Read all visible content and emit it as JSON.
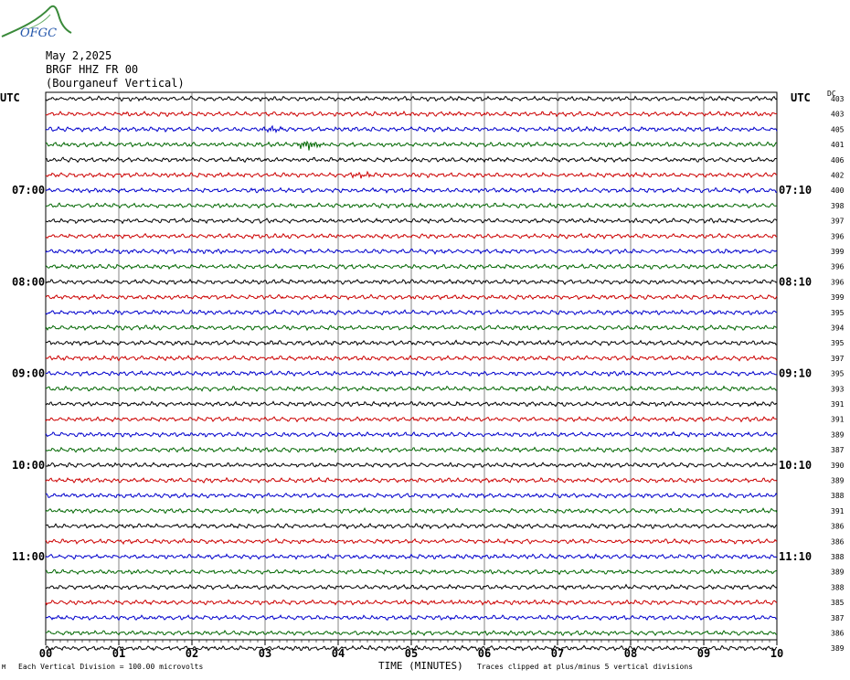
{
  "header": {
    "date": "May 2,2025",
    "station": "BRGF HHZ FR 00",
    "location": "(Bourganeuf Vertical)",
    "logo_text": "OFGC"
  },
  "axis_labels": {
    "left_tz": "UTC",
    "right_tz": "UTC",
    "right_col": "DC"
  },
  "footer": {
    "scale_note": "Each Vertical Division =  100.00 microvolts",
    "xlabel": "TIME (MINUTES)",
    "clip_note": "Traces clipped at plus/minus 5 vertical divisions",
    "mark": "M"
  },
  "chart_data": {
    "type": "line",
    "title": "",
    "xlabel": "TIME (MINUTES)",
    "ylabel": "",
    "xlim": [
      0,
      10
    ],
    "x_ticks": [
      "00",
      "01",
      "02",
      "03",
      "04",
      "05",
      "06",
      "07",
      "08",
      "09",
      "10"
    ],
    "grid": true,
    "trace_colors": [
      "#000000",
      "#cc0000",
      "#0000cc",
      "#006600"
    ],
    "left_time_labels": [
      {
        "row": 6,
        "label": "07:00"
      },
      {
        "row": 12,
        "label": "08:00"
      },
      {
        "row": 18,
        "label": "09:00"
      },
      {
        "row": 24,
        "label": "10:00"
      },
      {
        "row": 30,
        "label": "11:00"
      }
    ],
    "right_time_labels": [
      {
        "row": 6,
        "label": "07:10"
      },
      {
        "row": 12,
        "label": "08:10"
      },
      {
        "row": 18,
        "label": "09:10"
      },
      {
        "row": 24,
        "label": "10:10"
      },
      {
        "row": 30,
        "label": "11:10"
      }
    ],
    "dc_values": [
      "403",
      "403",
      "405",
      "401",
      "406",
      "402",
      "400",
      "398",
      "397",
      "396",
      "399",
      "396",
      "396",
      "399",
      "395",
      "394",
      "395",
      "397",
      "395",
      "393",
      "391",
      "391",
      "389",
      "387",
      "390",
      "389",
      "388",
      "391",
      "386",
      "386",
      "388",
      "389",
      "388",
      "385",
      "387",
      "386",
      "389"
    ],
    "events": [
      {
        "row": 3,
        "minute": 3.6,
        "amplitude": "high"
      },
      {
        "row": 5,
        "minute": 4.3,
        "amplitude": "medium"
      },
      {
        "row": 2,
        "minute": 3.1,
        "amplitude": "medium"
      }
    ]
  }
}
